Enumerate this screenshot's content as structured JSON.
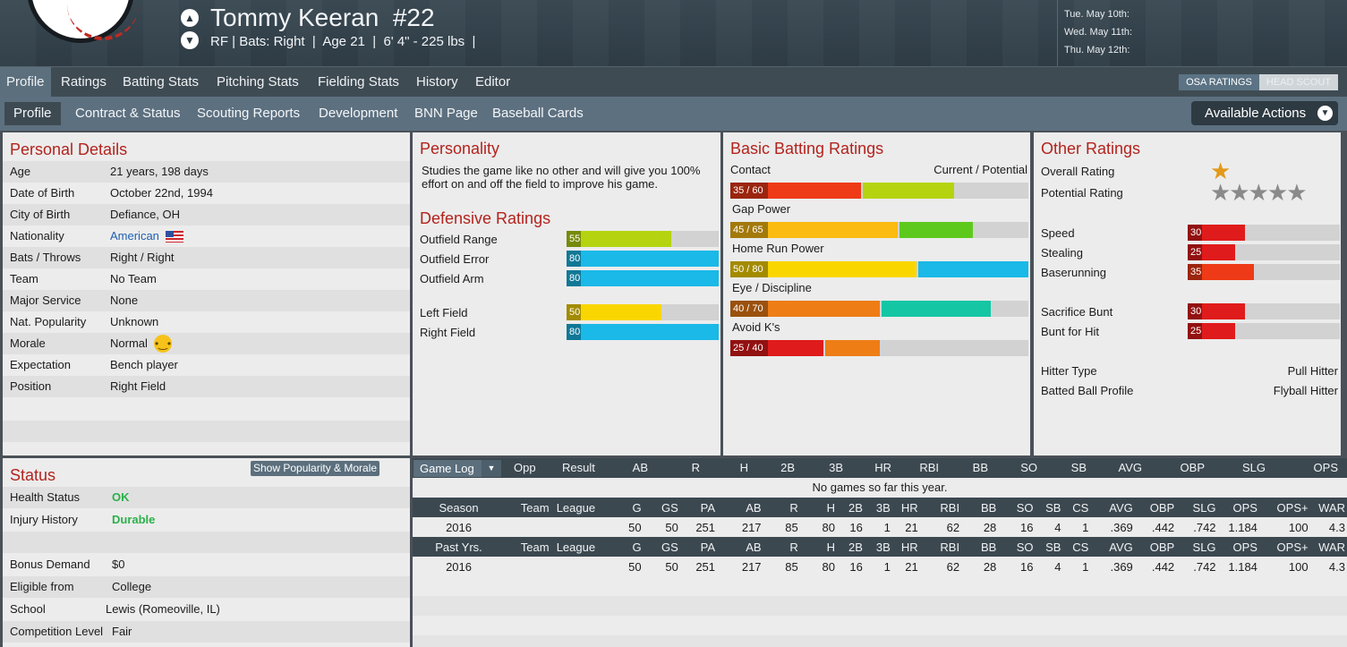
{
  "player": {
    "name": "Tommy Keeran",
    "number": "#22",
    "bio": "RF | Bats: Right  |  Age 21  |  6' 4\" - 225 lbs  |"
  },
  "schedule": [
    "Tue. May 10th:",
    "Wed. May 11th:",
    "Thu. May 12th:"
  ],
  "top_tabs": [
    "Profile",
    "Ratings",
    "Batting Stats",
    "Pitching Stats",
    "Fielding Stats",
    "History",
    "Editor"
  ],
  "rating_toggle": {
    "osa": "OSA RATINGS",
    "scout": "HEAD SCOUT"
  },
  "sub_tabs": [
    "Profile",
    "Contract & Status",
    "Scouting Reports",
    "Development",
    "BNN Page",
    "Baseball Cards"
  ],
  "actions_label": "Available Actions",
  "personal": {
    "title": "Personal Details",
    "rows": [
      {
        "label": "Age",
        "value": "21 years, 198 days"
      },
      {
        "label": "Date of Birth",
        "value": "October 22nd, 1994"
      },
      {
        "label": "City of Birth",
        "value": "Defiance, OH"
      },
      {
        "label": "Nationality",
        "value": "American"
      },
      {
        "label": "Bats / Throws",
        "value": "Right / Right"
      },
      {
        "label": "Team",
        "value": "No Team"
      },
      {
        "label": "Major Service",
        "value": "None"
      },
      {
        "label": "Nat. Popularity",
        "value": "Unknown"
      },
      {
        "label": "Morale",
        "value": "Normal"
      },
      {
        "label": "Expectation",
        "value": "Bench player"
      },
      {
        "label": "Position",
        "value": "Right Field"
      }
    ]
  },
  "personality": {
    "title": "Personality",
    "text": "Studies the game like no other and will give you 100% effort on and off the field to improve his game."
  },
  "defensive": {
    "title": "Defensive Ratings",
    "rows": [
      {
        "label": "Outfield Range",
        "value": "55",
        "current": 55,
        "color": "#b5d40f"
      },
      {
        "label": "Outfield Error",
        "value": "80",
        "current": 80,
        "color": "#1ab9e8"
      },
      {
        "label": "Outfield Arm",
        "value": "80",
        "current": 80,
        "color": "#1ab9e8"
      },
      {
        "label": "Left Field",
        "value": "50",
        "current": 50,
        "color": "#fad600"
      },
      {
        "label": "Right Field",
        "value": "80",
        "current": 80,
        "color": "#1ab9e8"
      }
    ]
  },
  "batting": {
    "title": "Basic Batting Ratings",
    "cp_label": "Current / Potential",
    "rows": [
      {
        "label": "Contact",
        "value": "35 / 60",
        "current": 35,
        "potential": 60,
        "c1": "#ee3a16",
        "c2": "#b5d40f"
      },
      {
        "label": "Gap Power",
        "value": "45 / 65",
        "current": 45,
        "potential": 65,
        "c1": "#fbbb10",
        "c2": "#5ec91d"
      },
      {
        "label": "Home Run Power",
        "value": "50 / 80",
        "current": 50,
        "potential": 80,
        "c1": "#fad600",
        "c2": "#1ab9e8"
      },
      {
        "label": "Eye / Discipline",
        "value": "40 / 70",
        "current": 40,
        "potential": 70,
        "c1": "#ee7d16",
        "c2": "#14c6a4"
      },
      {
        "label": "Avoid K's",
        "value": "25 / 40",
        "current": 25,
        "potential": 40,
        "c1": "#e01b1b",
        "c2": "#ee7d16"
      }
    ]
  },
  "other": {
    "title": "Other Ratings",
    "overall_label": "Overall Rating",
    "overall_stars": 1,
    "potential_label": "Potential Rating",
    "potential_stars": 5,
    "bars": [
      {
        "label": "Speed",
        "value": "30",
        "current": 30,
        "color": "#e01b1b"
      },
      {
        "label": "Stealing",
        "value": "25",
        "current": 25,
        "color": "#e01b1b"
      },
      {
        "label": "Baserunning",
        "value": "35",
        "current": 35,
        "color": "#ee3a16"
      },
      {
        "label": "Sacrifice Bunt",
        "value": "30",
        "current": 30,
        "color": "#e01b1b"
      },
      {
        "label": "Bunt for Hit",
        "value": "25",
        "current": 25,
        "color": "#e01b1b"
      }
    ],
    "hitter_type_label": "Hitter Type",
    "hitter_type": "Pull Hitter",
    "batted_ball_label": "Batted Ball Profile",
    "batted_ball": "Flyball Hitter"
  },
  "status": {
    "title": "Status",
    "popularity_button": "Show Popularity & Morale",
    "health_label": "Health Status",
    "health": "OK",
    "injury_label": "Injury History",
    "injury": "Durable",
    "rows": [
      {
        "label": "Bonus Demand",
        "value": "$0"
      },
      {
        "label": "Eligible from",
        "value": "College"
      },
      {
        "label": "School",
        "value": "Lewis (Romeoville, IL)"
      },
      {
        "label": "Competition Level",
        "value": "Fair"
      }
    ]
  },
  "game_log": {
    "dropdown": "Game Log",
    "headers": [
      "Opp",
      "Result",
      "AB",
      "R",
      "H",
      "2B",
      "3B",
      "HR",
      "RBI",
      "BB",
      "SO",
      "SB",
      "AVG",
      "OBP",
      "SLG",
      "OPS"
    ],
    "empty_message": "No games so far this year."
  },
  "stats_headers_season": [
    "Season",
    "Team",
    "League",
    "G",
    "GS",
    "PA",
    "AB",
    "R",
    "H",
    "2B",
    "3B",
    "HR",
    "RBI",
    "BB",
    "SO",
    "SB",
    "CS",
    "AVG",
    "OBP",
    "SLG",
    "OPS",
    "OPS+",
    "WAR"
  ],
  "stats_headers_past": [
    "Past Yrs.",
    "Team",
    "League",
    "G",
    "GS",
    "PA",
    "AB",
    "R",
    "H",
    "2B",
    "3B",
    "HR",
    "RBI",
    "BB",
    "SO",
    "SB",
    "CS",
    "AVG",
    "OBP",
    "SLG",
    "OPS",
    "OPS+",
    "WAR"
  ],
  "season_row": [
    "2016",
    "",
    "",
    "50",
    "50",
    "251",
    "217",
    "85",
    "80",
    "16",
    "1",
    "21",
    "62",
    "28",
    "16",
    "4",
    "1",
    ".369",
    ".442",
    ".742",
    "1.184",
    "100",
    "4.3"
  ],
  "past_row": [
    "2016",
    "",
    "",
    "50",
    "50",
    "251",
    "217",
    "85",
    "80",
    "16",
    "1",
    "21",
    "62",
    "28",
    "16",
    "4",
    "1",
    ".369",
    ".442",
    ".742",
    "1.184",
    "100",
    "4.3"
  ],
  "colors": {
    "title_red": "#b3231d",
    "ok_green": "#2bb14a",
    "link_blue": "#1f5fb0"
  }
}
